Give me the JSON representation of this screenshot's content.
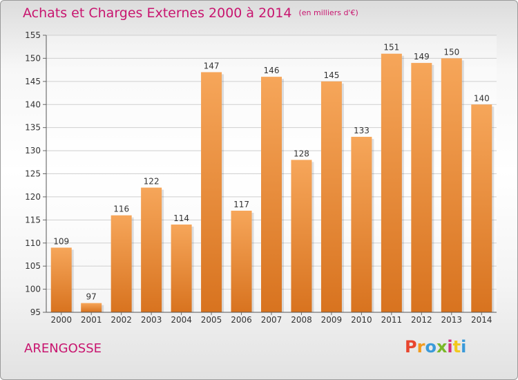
{
  "header": {
    "title": "Achats et Charges Externes 2000 à 2014",
    "unit": "(en milliers d'€)"
  },
  "footer": {
    "place": "ARENGOSSE",
    "logo_text": "Proxiti",
    "logo_colors": [
      "#e8452e",
      "#f29a1d",
      "#3a9ad9",
      "#7ab829",
      "#d2317d",
      "#f2c81d",
      "#3a9ad9"
    ]
  },
  "chart_data": {
    "type": "bar",
    "title": "Achats et Charges Externes 2000 à 2014",
    "subtitle": "(en milliers d'€)",
    "categories": [
      "2000",
      "2001",
      "2002",
      "2003",
      "2004",
      "2005",
      "2006",
      "2007",
      "2008",
      "2009",
      "2010",
      "2011",
      "2012",
      "2013",
      "2014"
    ],
    "values": [
      109,
      97,
      116,
      122,
      114,
      147,
      117,
      146,
      128,
      145,
      133,
      151,
      149,
      150,
      140
    ],
    "ylim": [
      95,
      155
    ],
    "yticks": [
      95,
      100,
      105,
      110,
      115,
      120,
      125,
      130,
      135,
      140,
      145,
      150,
      155
    ],
    "grid": "horizontal",
    "bar_color_top": "#f6a65a",
    "bar_color_bottom": "#d8731f"
  }
}
